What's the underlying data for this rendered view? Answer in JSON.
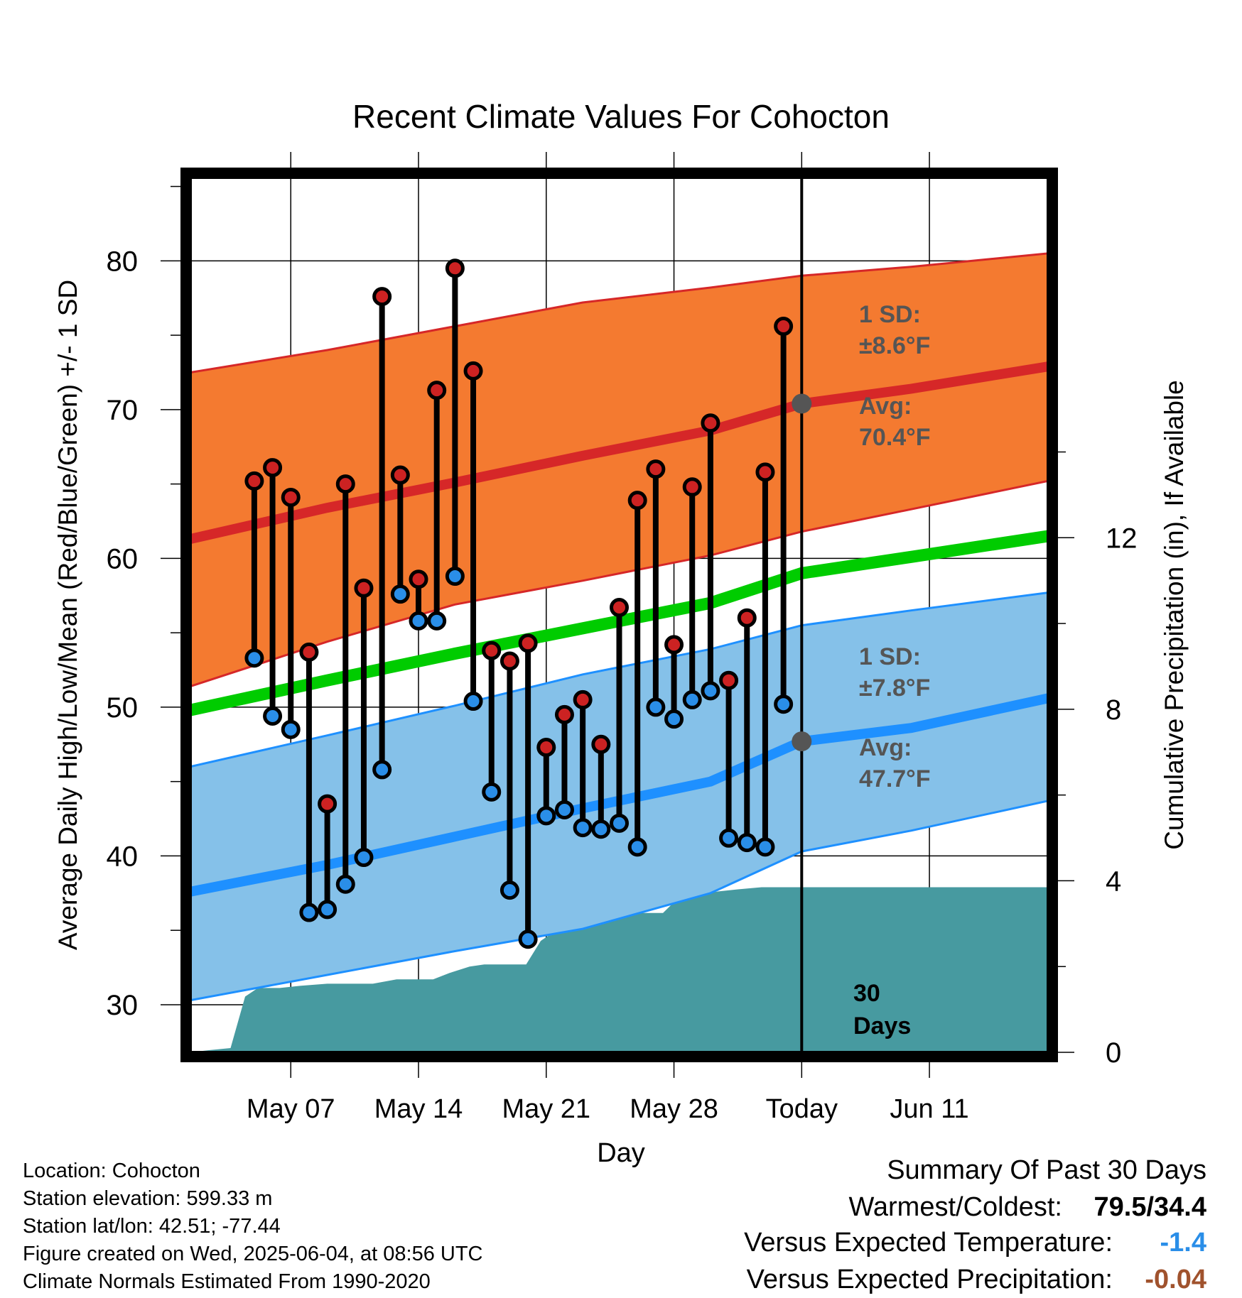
{
  "chart_data": {
    "type": "line",
    "title": "Recent Climate Values For Cohocton",
    "xlabel": "Day",
    "ylabel_left": "Average Daily High/Low/Mean (Red/Blue/Green) +/- 1 SD",
    "ylabel_right": "Cumulative Precipitation (in), If Available",
    "ylim_left": [
      26.8,
      85.6
    ],
    "ylim_right": [
      0,
      20.4
    ],
    "x_range_days": [
      -33.5,
      13.5
    ],
    "x_ticks": [
      {
        "day": -28,
        "label": "May 07"
      },
      {
        "day": -21,
        "label": "May 14"
      },
      {
        "day": -14,
        "label": "May 21"
      },
      {
        "day": -7,
        "label": "May 28"
      },
      {
        "day": 0,
        "label": "Today"
      },
      {
        "day": 7,
        "label": "Jun 11"
      }
    ],
    "y_ticks_left": [
      "30",
      "40",
      "50",
      "60",
      "70",
      "80"
    ],
    "y_ticks_right": [
      "0",
      "4",
      "8",
      "12"
    ],
    "grid": true,
    "today_marker": {
      "day": 0,
      "label_line1": "30",
      "label_line2": "Days"
    },
    "normals": {
      "days": [
        -33.5,
        -26,
        -19,
        -12,
        -5,
        0,
        6,
        13.5
      ],
      "high_avg": [
        61.3,
        63.4,
        65.1,
        66.9,
        68.6,
        70.4,
        71.4,
        72.9
      ],
      "high_upper": [
        72.5,
        74.0,
        75.6,
        77.2,
        78.2,
        79.0,
        79.6,
        80.5
      ],
      "high_lower": [
        51.4,
        54.4,
        56.9,
        58.5,
        60.2,
        61.8,
        63.3,
        65.2
      ],
      "mean_avg": [
        49.8,
        51.8,
        53.6,
        55.3,
        57.0,
        59.0,
        60.1,
        61.5
      ],
      "low_avg": [
        37.6,
        39.4,
        41.3,
        43.2,
        45.0,
        47.7,
        48.6,
        50.6
      ],
      "low_upper": [
        46.0,
        48.1,
        50.1,
        52.2,
        53.9,
        55.5,
        56.5,
        57.7
      ],
      "low_lower": [
        30.3,
        32.0,
        33.6,
        35.1,
        37.5,
        40.3,
        41.7,
        43.7
      ]
    },
    "series": [
      {
        "name": "High",
        "days": [
          -30,
          -29,
          -28,
          -27,
          -26,
          -25,
          -24,
          -23,
          -22,
          -21,
          -20,
          -19,
          -18,
          -17,
          -16,
          -15,
          -14,
          -13,
          -12,
          -11,
          -10,
          -9,
          -8,
          -7,
          -6,
          -5,
          -4,
          -3,
          -2,
          -1
        ],
        "values": [
          65.2,
          66.1,
          64.1,
          53.7,
          43.5,
          65.0,
          58.0,
          77.6,
          65.6,
          58.6,
          71.3,
          79.5,
          72.6,
          53.8,
          53.1,
          54.3,
          47.3,
          49.5,
          50.5,
          47.5,
          56.7,
          63.9,
          66.0,
          54.2,
          64.8,
          69.1,
          51.8,
          56.0,
          65.8,
          75.6
        ]
      },
      {
        "name": "Low",
        "days": [
          -30,
          -29,
          -28,
          -27,
          -26,
          -25,
          -24,
          -23,
          -22,
          -21,
          -20,
          -19,
          -18,
          -17,
          -16,
          -15,
          -14,
          -13,
          -12,
          -11,
          -10,
          -9,
          -8,
          -7,
          -6,
          -5,
          -4,
          -3,
          -2,
          -1
        ],
        "values": [
          53.3,
          49.4,
          48.5,
          36.2,
          36.4,
          38.1,
          39.9,
          45.8,
          57.6,
          55.8,
          55.8,
          58.8,
          50.4,
          44.3,
          37.7,
          34.4,
          42.7,
          43.1,
          41.9,
          41.8,
          42.2,
          40.6,
          50.0,
          49.2,
          50.5,
          51.1,
          41.2,
          40.9,
          40.6,
          50.2
        ]
      },
      {
        "name": "Cumulative Precipitation",
        "days": [
          -33.5,
          -32.5,
          -31.3,
          -30.5,
          -29.8,
          -28.6,
          -27.5,
          -26,
          -25,
          -23.5,
          -22.2,
          -21,
          -20.2,
          -19.3,
          -18.2,
          -17.4,
          -16.3,
          -15.1,
          -14.3,
          -13.6,
          -12.8,
          -12,
          -11.4,
          -10.5,
          -9.5,
          -8.5,
          -7.6,
          -7,
          -6.6,
          -6,
          -5.2,
          -4.6,
          -3.5,
          -2.2,
          -1,
          0,
          13.5
        ],
        "values": [
          0,
          0.05,
          0.1,
          1.3,
          1.5,
          1.5,
          1.55,
          1.6,
          1.6,
          1.6,
          1.7,
          1.7,
          1.7,
          1.85,
          2.0,
          2.05,
          2.05,
          2.05,
          2.6,
          2.8,
          2.9,
          3.0,
          3.2,
          3.25,
          3.25,
          3.25,
          3.25,
          3.5,
          3.65,
          3.7,
          3.7,
          3.75,
          3.8,
          3.85,
          3.85,
          3.85,
          3.85
        ]
      }
    ],
    "annotations": {
      "high_sd_line1": "1 SD:",
      "high_sd_line2": "±8.6°F",
      "high_avg_line1": "Avg:",
      "high_avg_line2": "70.4°F",
      "low_sd_line1": "1 SD:",
      "low_sd_line2": "±7.8°F",
      "low_avg_line1": "Avg:",
      "low_avg_line2": "47.7°F"
    },
    "colors": {
      "high_band": "#f47a30",
      "high_line": "#d62728",
      "mean_line": "#00cc00",
      "low_band": "#85c1e9",
      "low_line": "#1e90ff",
      "precip": "#479aa0",
      "high_dot": "#cc2222",
      "low_dot": "#2a8ee8",
      "avg_dot": "#555555",
      "annotation_text": "#555555"
    }
  },
  "info": {
    "location": "Location: Cohocton",
    "elevation": "Station elevation: 599.33 m",
    "latlon": "Station lat/lon: 42.51; -77.44",
    "created": "Figure created on Wed, 2025-06-04, at 08:56 UTC",
    "normals": "Climate Normals Estimated From 1990-2020"
  },
  "summary": {
    "title": "Summary Of Past 30 Days",
    "warmest_label": "Warmest/Coldest:",
    "warmest_value": "79.5/34.4",
    "temp_label": "Versus Expected Temperature:",
    "temp_value": "-1.4",
    "temp_color": "#2a8ee8",
    "precip_label": "Versus Expected Precipitation:",
    "precip_value": "-0.04",
    "precip_color": "#a0522d"
  }
}
